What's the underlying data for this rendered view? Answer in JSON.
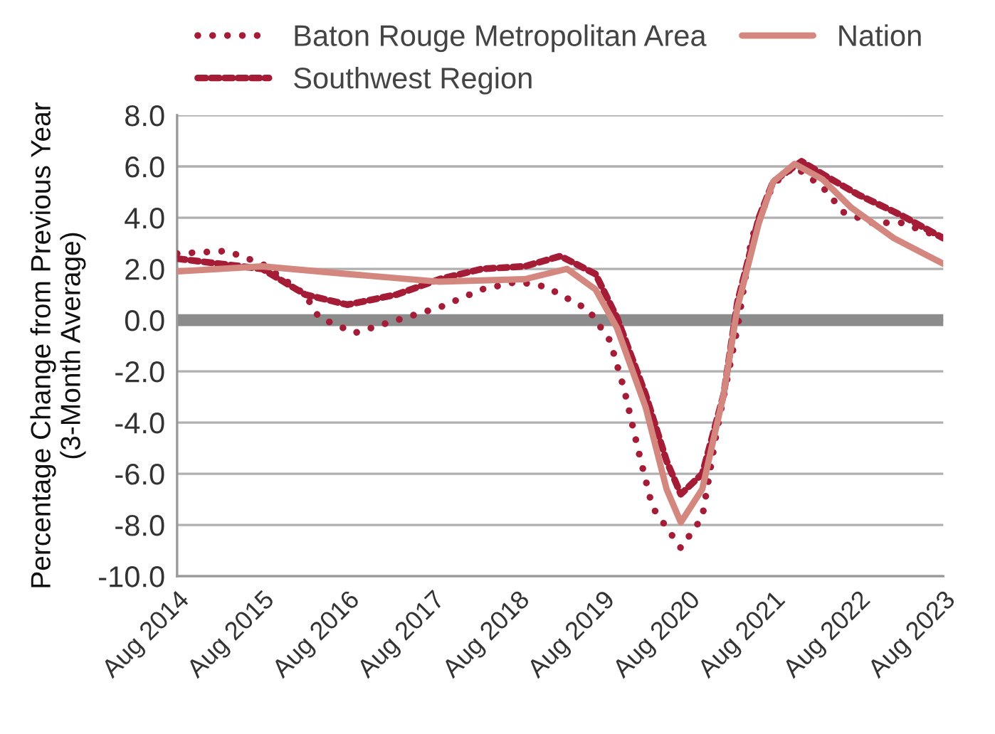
{
  "chart_data": {
    "type": "line",
    "ylabel": "Percentage Change from Previous Year\n(3-Month Average)",
    "xlim": [
      "2014-08",
      "2023-08"
    ],
    "xticks": [
      {
        "value": "2014-08",
        "label": "Aug 2014"
      },
      {
        "value": "2015-08",
        "label": "Aug 2015"
      },
      {
        "value": "2016-08",
        "label": "Aug 2016"
      },
      {
        "value": "2017-08",
        "label": "Aug 2017"
      },
      {
        "value": "2018-08",
        "label": "Aug 2018"
      },
      {
        "value": "2019-08",
        "label": "Aug 2019"
      },
      {
        "value": "2020-08",
        "label": "Aug 2020"
      },
      {
        "value": "2021-08",
        "label": "Aug 2021"
      },
      {
        "value": "2022-08",
        "label": "Aug 2022"
      },
      {
        "value": "2023-08",
        "label": "Aug 2023"
      }
    ],
    "ylim": [
      -10,
      8
    ],
    "yticks": [
      {
        "value": -10,
        "label": "-10.0"
      },
      {
        "value": -8,
        "label": "-8.0"
      },
      {
        "value": -6,
        "label": "-6.0"
      },
      {
        "value": -4,
        "label": "-4.0"
      },
      {
        "value": -2,
        "label": "-2.0"
      },
      {
        "value": 0,
        "label": "0.0"
      },
      {
        "value": 2,
        "label": "2.0"
      },
      {
        "value": 4,
        "label": "4.0"
      },
      {
        "value": 6,
        "label": "6.0"
      },
      {
        "value": 8,
        "label": "8.0"
      }
    ],
    "grid": "y",
    "legend": "top",
    "ref_lines": [
      {
        "axis": "y",
        "value": 0,
        "label": null,
        "color": "#8c8c8c"
      }
    ],
    "series": [
      {
        "name": "Baton Rouge Metropolitan Area",
        "color": "#a51c36",
        "line_style": "dotted",
        "x": [
          "2014-08",
          "2015-03",
          "2015-08",
          "2016-02",
          "2016-04",
          "2016-09",
          "2017-03",
          "2017-09",
          "2018-03",
          "2018-08",
          "2018-12",
          "2019-04",
          "2019-06",
          "2019-09",
          "2019-11",
          "2020-01",
          "2020-03",
          "2020-07",
          "2020-10",
          "2020-12",
          "2021-03",
          "2021-05",
          "2021-08",
          "2021-11",
          "2022-03",
          "2022-06",
          "2022-10",
          "2023-02",
          "2023-06",
          "2023-08"
        ],
        "values": [
          2.6,
          2.7,
          2.2,
          1.0,
          0.1,
          -0.5,
          0.0,
          0.5,
          1.2,
          1.5,
          1.3,
          0.7,
          0.4,
          -0.8,
          -2.7,
          -5.1,
          -7.3,
          -8.9,
          -7.7,
          -4.4,
          -0.3,
          3.2,
          5.3,
          6.0,
          5.2,
          4.2,
          3.8,
          3.8,
          3.4,
          3.3
        ]
      },
      {
        "name": "Southwest Region",
        "color": "#a51c36",
        "line_style": "dashed",
        "x": [
          "2014-08",
          "2015-08",
          "2016-02",
          "2016-08",
          "2017-03",
          "2017-09",
          "2018-03",
          "2018-09",
          "2019-02",
          "2019-07",
          "2019-10",
          "2020-02",
          "2020-05",
          "2020-07",
          "2020-10",
          "2021-01",
          "2021-03",
          "2021-06",
          "2021-08",
          "2021-12",
          "2022-03",
          "2022-08",
          "2023-02",
          "2023-08"
        ],
        "values": [
          2.4,
          2.0,
          1.0,
          0.6,
          1.0,
          1.6,
          2.0,
          2.1,
          2.5,
          1.8,
          0.1,
          -2.9,
          -5.5,
          -6.8,
          -6.0,
          -2.9,
          0.7,
          4.0,
          5.4,
          6.2,
          5.7,
          4.9,
          4.1,
          3.2
        ]
      },
      {
        "name": "Nation",
        "color": "#d4877f",
        "line_style": "solid",
        "x": [
          "2014-08",
          "2015-08",
          "2016-08",
          "2017-09",
          "2018-09",
          "2019-03",
          "2019-07",
          "2019-10",
          "2020-02",
          "2020-05",
          "2020-07",
          "2020-10",
          "2021-01",
          "2021-03",
          "2021-06",
          "2021-08",
          "2021-11",
          "2022-03",
          "2022-07",
          "2023-01",
          "2023-08"
        ],
        "values": [
          1.9,
          2.1,
          1.8,
          1.5,
          1.6,
          2.0,
          1.2,
          -0.3,
          -3.4,
          -6.6,
          -7.9,
          -6.6,
          -2.9,
          0.5,
          3.8,
          5.4,
          6.1,
          5.5,
          4.4,
          3.2,
          2.2
        ]
      }
    ]
  }
}
